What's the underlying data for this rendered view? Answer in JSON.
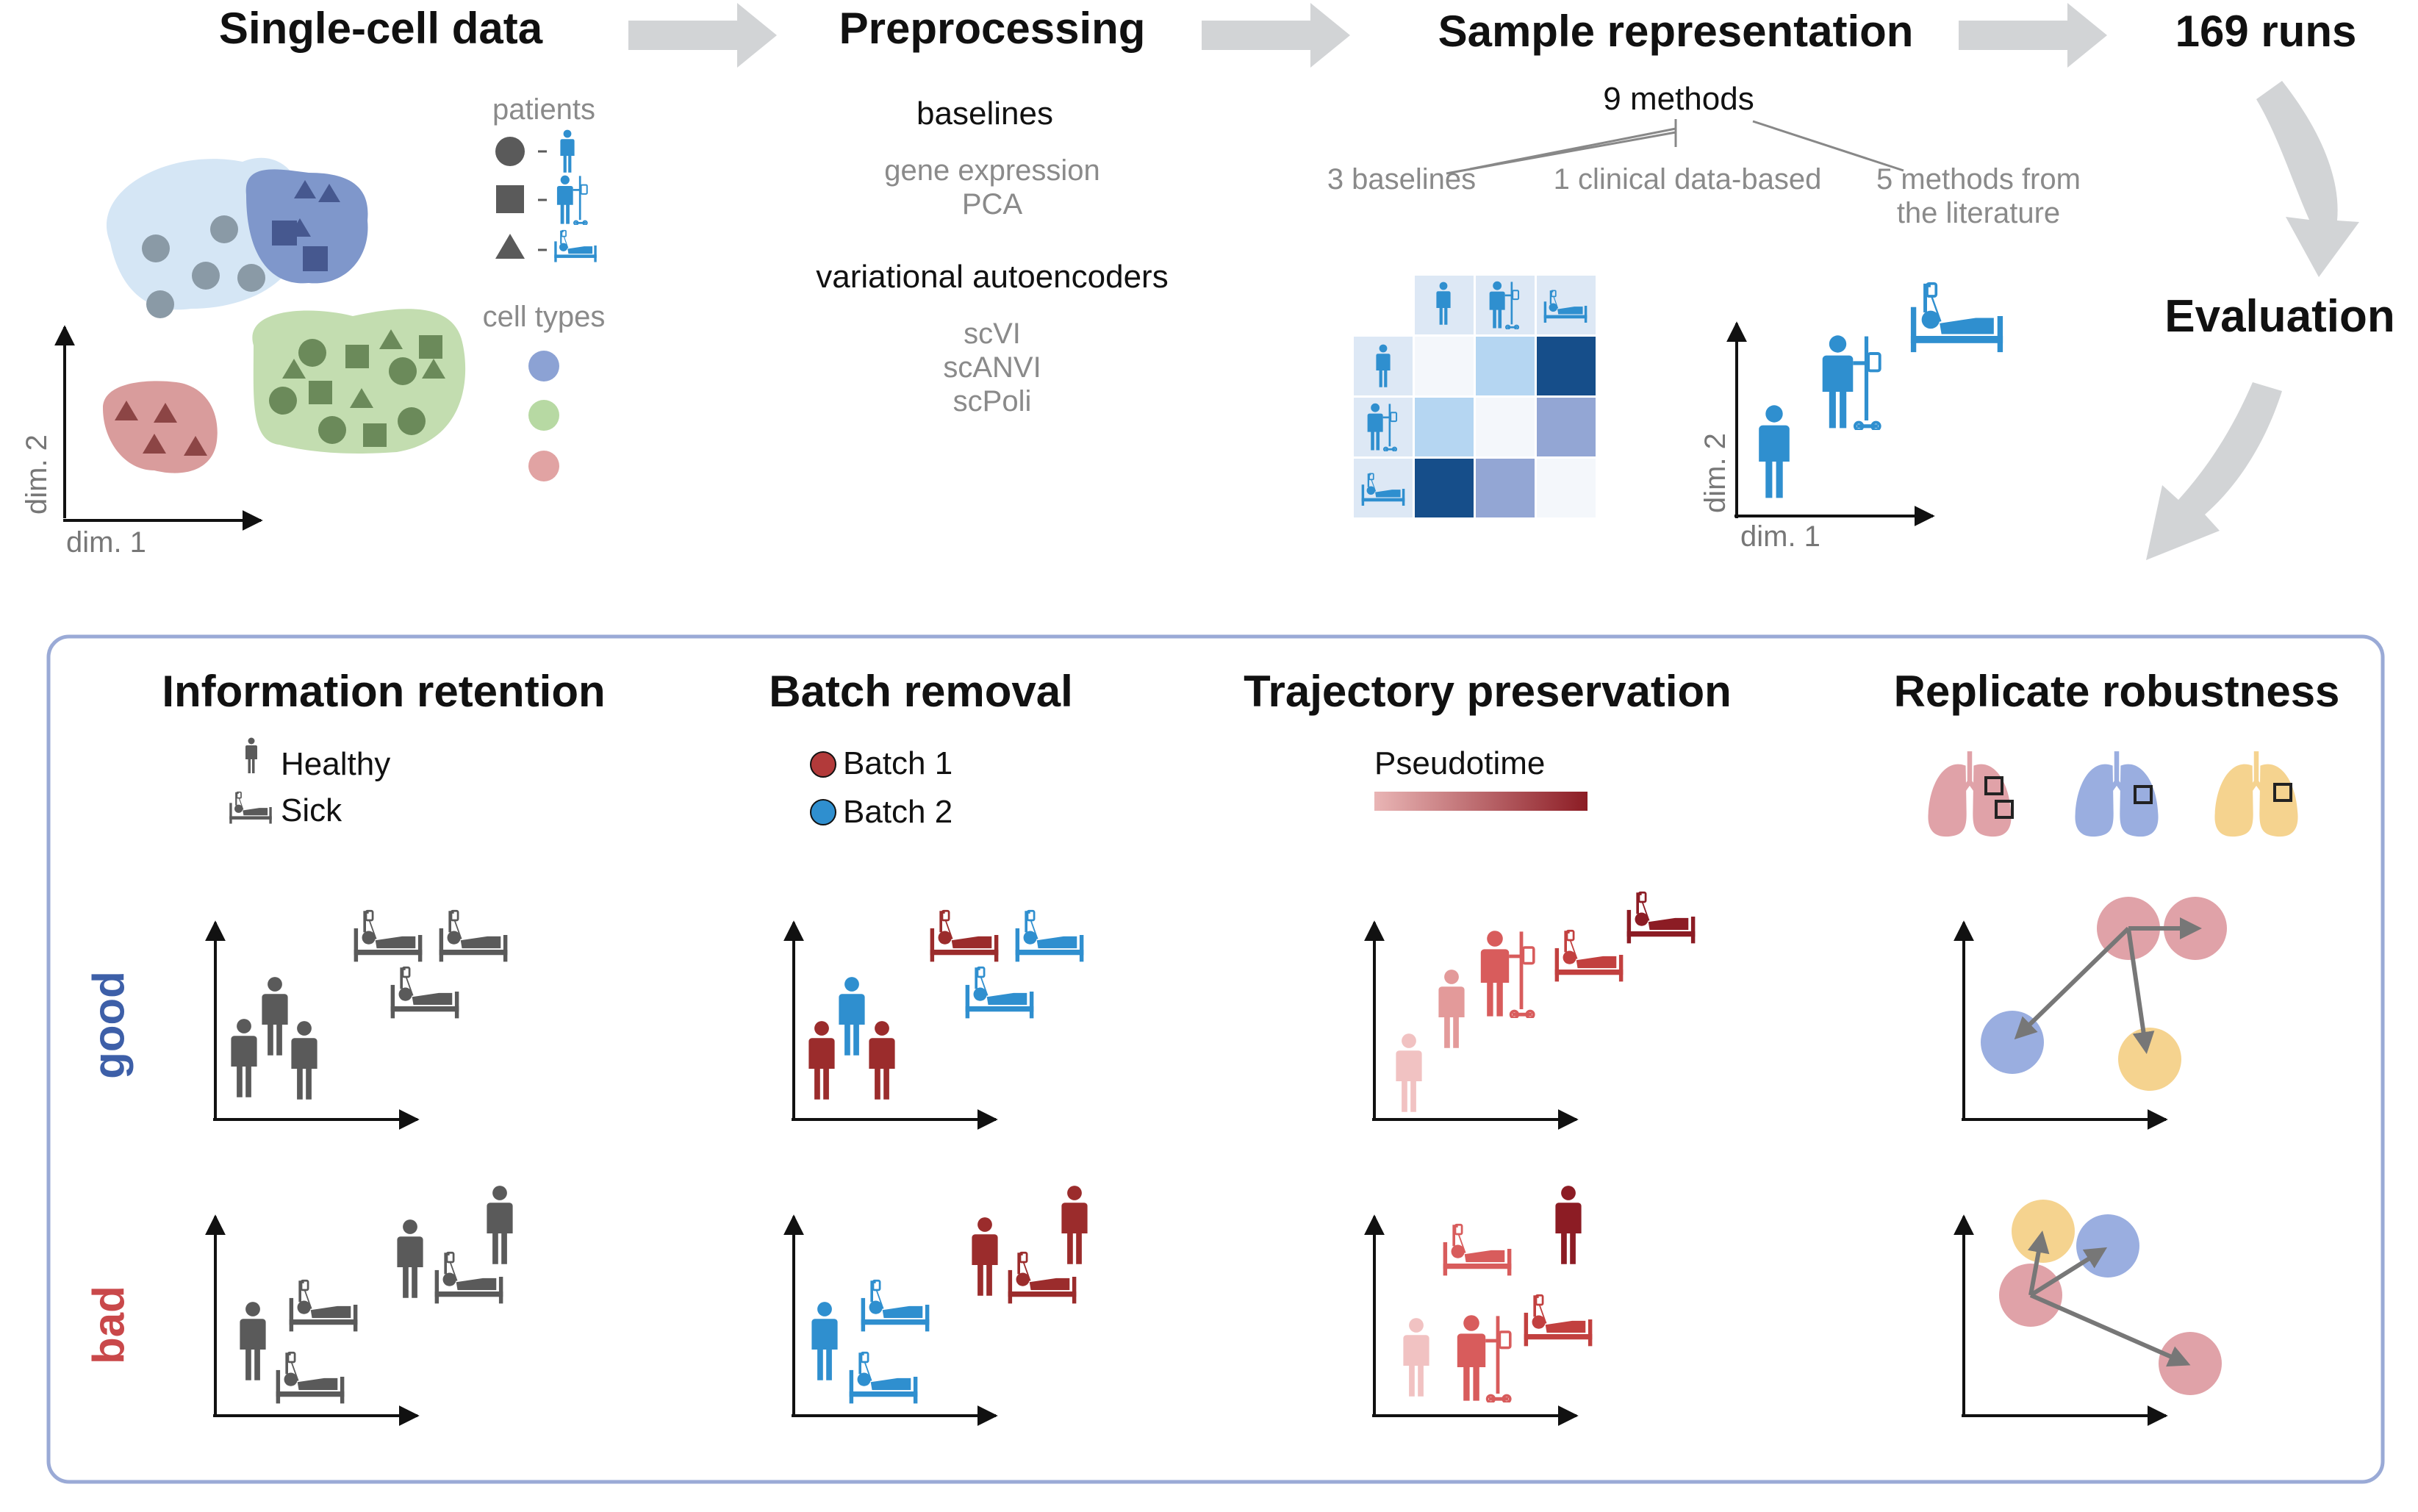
{
  "pipeline": {
    "step1": "Single-cell data",
    "step2": "Preprocessing",
    "step3": "Sample representation",
    "step4": "169 runs",
    "step5": "Evaluation"
  },
  "single_cell": {
    "patients_label": "patients",
    "cell_types_label": "cell types",
    "xlabel": "dim. 1",
    "ylabel": "dim. 2"
  },
  "preprocessing": {
    "group1": "baselines",
    "group1_items": [
      "gene expression",
      "PCA"
    ],
    "group2": "variational autoencoders",
    "group2_items": [
      "scVI",
      "scANVI",
      "scPoli"
    ]
  },
  "representation": {
    "methods_count": "9 methods",
    "branches": [
      "3 baselines",
      "1 clinical data-based",
      "5 methods from\nthe literature"
    ],
    "xlabel": "dim. 1",
    "ylabel": "dim. 2"
  },
  "evaluation": {
    "panels": [
      {
        "title": "Information retention",
        "legend": [
          "Healthy",
          "Sick"
        ]
      },
      {
        "title": "Batch removal",
        "legend": [
          "Batch 1",
          "Batch 2"
        ]
      },
      {
        "title": "Trajectory preservation",
        "legend": [
          "Pseudotime"
        ]
      },
      {
        "title": "Replicate robustness",
        "legend": []
      }
    ],
    "rows": [
      "good",
      "bad"
    ]
  },
  "colors": {
    "grey_icon": "#5a5a5a",
    "blue_icon": "#2f8fcf",
    "batch1": "#b23a3a",
    "batch2": "#2f8fcf",
    "good": "#3d5fa8",
    "bad": "#c9484a",
    "frame": "#9aaad6",
    "arrow_fill": "#d2d4d6"
  }
}
